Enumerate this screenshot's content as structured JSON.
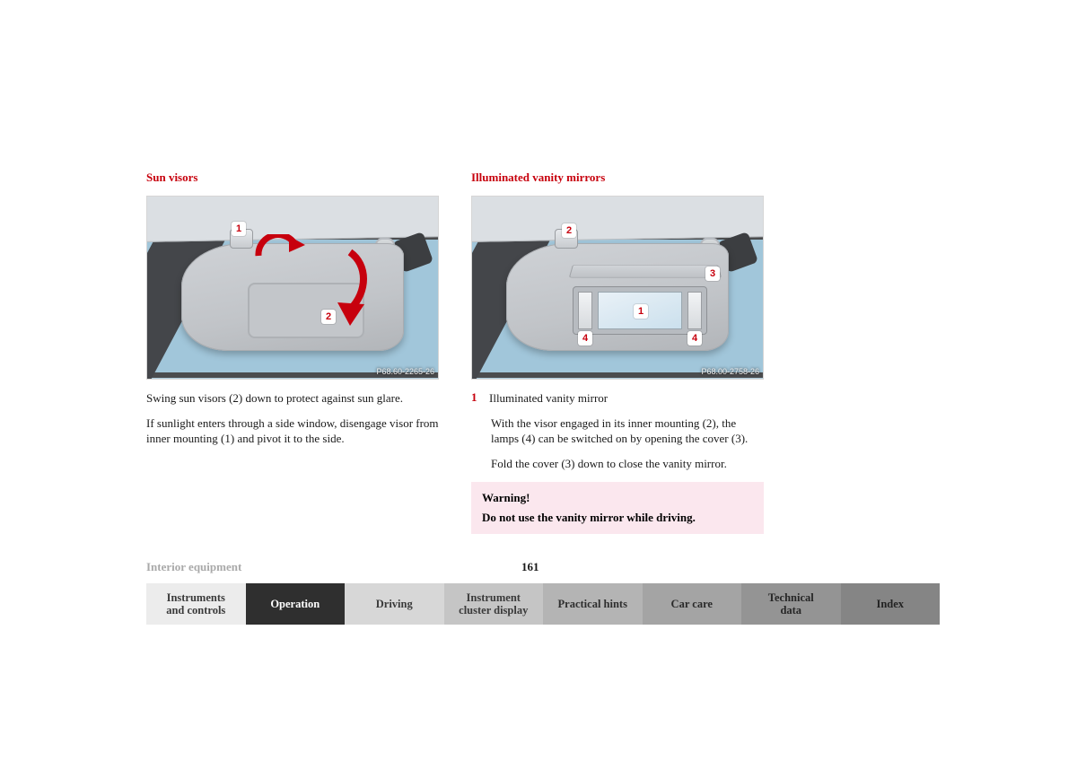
{
  "left": {
    "title": "Sun visors",
    "title_color": "#c7000d",
    "fig_code": "P68.60-2265-26",
    "callouts": {
      "clip": "1",
      "cover": "2"
    },
    "para1": "Swing sun visors (2) down to protect against sun glare.",
    "para2": "If sunlight enters through a side window, disengage visor from inner mounting (1) and pivot it to the side.",
    "arrow_color": "#c7000d"
  },
  "right": {
    "title": "Illuminated vanity mirrors",
    "title_color": "#c7000d",
    "fig_code": "P68.00-2758-26",
    "callouts": {
      "mirror": "1",
      "clip": "2",
      "cover": "3",
      "lampL": "4",
      "lampR": "4"
    },
    "list_num": "1",
    "list_label": "Illuminated vanity mirror",
    "para1": "With the visor engaged in its inner mounting (2), the lamps (4) can be switched on by opening the cover (3).",
    "para2": "Fold the cover (3) down to close the vanity mirror."
  },
  "warning": {
    "title": "Warning!",
    "text": "Do not use the vanity mirror while driving.",
    "bg": "#fbe7ee"
  },
  "footer": {
    "chapter": "Interior equipment",
    "page": "161"
  },
  "tabs": [
    {
      "label": "Instruments\nand controls",
      "bg": "#ececec",
      "fg": "#3a3a3a"
    },
    {
      "label": "Operation",
      "bg": "#2f2f2f",
      "fg": "#ffffff"
    },
    {
      "label": "Driving",
      "bg": "#d7d7d7",
      "fg": "#3a3a3a"
    },
    {
      "label": "Instrument\ncluster display",
      "bg": "#c5c5c5",
      "fg": "#3a3a3a"
    },
    {
      "label": "Practical hints",
      "bg": "#b4b4b4",
      "fg": "#2e2e2e"
    },
    {
      "label": "Car care",
      "bg": "#a4a4a4",
      "fg": "#2a2a2a"
    },
    {
      "label": "Technical\ndata",
      "bg": "#949494",
      "fg": "#262626"
    },
    {
      "label": "Index",
      "bg": "#858585",
      "fg": "#222222"
    }
  ]
}
